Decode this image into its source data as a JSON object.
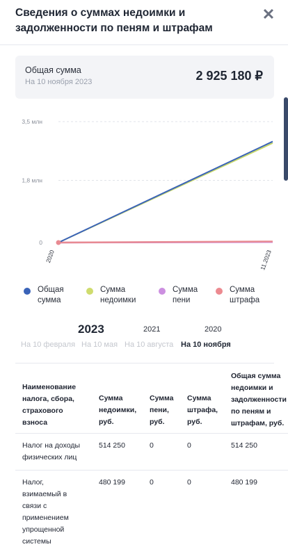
{
  "header": {
    "title": "Сведения о суммах недоимки и задолженности по пеням и штрафам",
    "close_icon": "close-icon"
  },
  "summary": {
    "label": "Общая сумма",
    "date": "На 10 ноября 2023",
    "total": "2 925 180 ₽"
  },
  "chart_data": {
    "type": "line",
    "y_ticks": [
      "3,5 млн",
      "1,8 млн",
      "0"
    ],
    "x_ticks": [
      "2020",
      "11.2023"
    ],
    "ylim": [
      0,
      3500000
    ],
    "grid": true,
    "series": [
      {
        "name": "Общая сумма",
        "color": "#3a63b8",
        "values": [
          0,
          2925180
        ]
      },
      {
        "name": "Сумма недоимки",
        "color": "#c8d86a",
        "values": [
          0,
          2880000
        ]
      },
      {
        "name": "Сумма пени",
        "color": "#c98be0",
        "values": [
          0,
          15000
        ]
      },
      {
        "name": "Сумма штрафа",
        "color": "#e88a92",
        "values": [
          0,
          30000
        ]
      }
    ]
  },
  "legend": [
    {
      "label": "Общая сумма",
      "color": "#3a63b8"
    },
    {
      "label": "Сумма недоимки",
      "color": "#cfdc6e"
    },
    {
      "label": "Сумма пени",
      "color": "#cc8fe0"
    },
    {
      "label": "Сумма штрафа",
      "color": "#ec8a90"
    }
  ],
  "years": [
    "2023",
    "2021",
    "2020"
  ],
  "dates": [
    "На 10 февраля",
    "На 10 мая",
    "На 10 августа",
    "На 10 ноября"
  ],
  "table": {
    "headers": [
      "Наименование налога, сбора, страхового взноса",
      "Сумма недоимки, руб.",
      "Сумма пени, руб.",
      "Сумма штрафа, руб.",
      "Общая сумма недоимки и задолженности по пеням и штрафам, руб."
    ],
    "rows": [
      [
        "Налог на доходы физических лиц",
        "514 250",
        "0",
        "0",
        "514 250"
      ],
      [
        "Налог, взимаемый в связи с применением упрощенной системы",
        "480 199",
        "0",
        "0",
        "480 199"
      ]
    ]
  }
}
